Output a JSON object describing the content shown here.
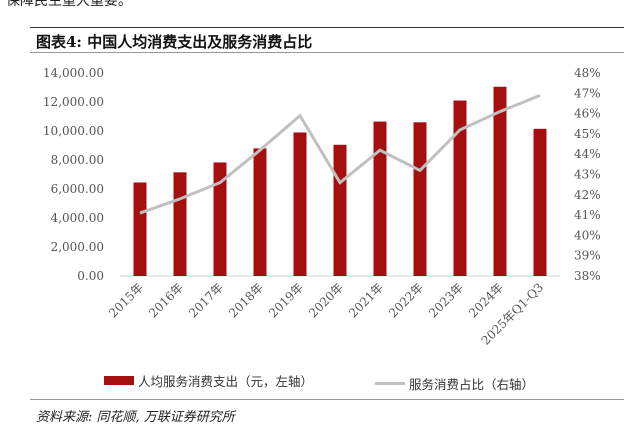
{
  "top_fragment": "保障民生重大重要。",
  "title": "图表4:  中国人均消费支出及服务消费占比",
  "source": "资料来源: 同花顺, 万联证券研究所",
  "colors": {
    "bar": "#A50F0F",
    "line": "#C0C0C0"
  },
  "chart_data": {
    "type": "bar",
    "categories": [
      "2015年",
      "2016年",
      "2017年",
      "2018年",
      "2019年",
      "2020年",
      "2021年",
      "2022年",
      "2023年",
      "2024年",
      "2025年Q1-Q3"
    ],
    "series": [
      {
        "name": "人均服务消费支出（元，左轴）",
        "type": "bar",
        "axis": "left",
        "values": [
          6450,
          7150,
          7830,
          8800,
          9900,
          9050,
          10650,
          10600,
          12100,
          13050,
          10150
        ]
      },
      {
        "name": "服务消费占比（右轴）",
        "type": "line",
        "axis": "right",
        "values": [
          41.1,
          41.8,
          42.6,
          44.2,
          45.9,
          42.6,
          44.2,
          43.2,
          45.2,
          46.1,
          46.9
        ]
      }
    ],
    "left_axis": {
      "min": 0,
      "max": 14000,
      "step": 2000,
      "ticks": [
        "0.00",
        "2,000.00",
        "4,000.00",
        "6,000.00",
        "8,000.00",
        "10,000.00",
        "12,000.00",
        "14,000.00"
      ]
    },
    "right_axis": {
      "min": 38,
      "max": 48,
      "step": 1,
      "ticks": [
        "38%",
        "39%",
        "40%",
        "41%",
        "42%",
        "43%",
        "44%",
        "45%",
        "46%",
        "47%",
        "48%"
      ]
    },
    "grid": false,
    "legend": "bottom"
  }
}
